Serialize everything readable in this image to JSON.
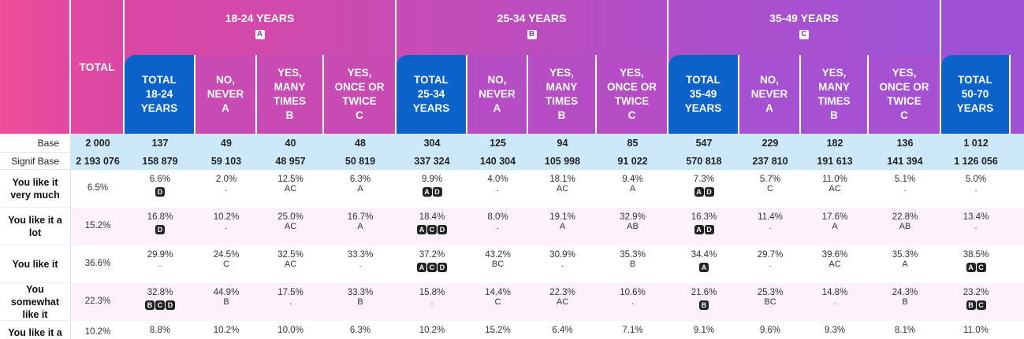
{
  "columns": {
    "total": "TOTAL",
    "groups": [
      {
        "label": "18-24 YEARS",
        "badge": "A"
      },
      {
        "label": "25-34 YEARS",
        "badge": "B"
      },
      {
        "label": "35-49 YEARS",
        "badge": "C"
      }
    ],
    "subheaders": [
      [
        "TOTAL",
        "18-24",
        "YEARS"
      ],
      [
        "NO,",
        "NEVER",
        "A"
      ],
      [
        "YES,",
        "MANY",
        "TIMES",
        "B"
      ],
      [
        "YES,",
        "ONCE OR",
        "TWICE",
        "C"
      ],
      [
        "TOTAL",
        "25-34",
        "YEARS"
      ],
      [
        "NO,",
        "NEVER",
        "A"
      ],
      [
        "YES,",
        "MANY",
        "TIMES",
        "B"
      ],
      [
        "YES,",
        "ONCE OR",
        "TWICE",
        "C"
      ],
      [
        "TOTAL",
        "35-49",
        "YEARS"
      ],
      [
        "NO,",
        "NEVER",
        "A"
      ],
      [
        "YES,",
        "MANY",
        "TIMES",
        "B"
      ],
      [
        "YES,",
        "ONCE OR",
        "TWICE",
        "C"
      ],
      [
        "TOTAL",
        "50-70",
        "YEARS"
      ]
    ]
  },
  "base": {
    "label": "Base",
    "values": [
      "2 000",
      "137",
      "49",
      "40",
      "48",
      "304",
      "125",
      "94",
      "85",
      "547",
      "229",
      "182",
      "136",
      "1 012"
    ]
  },
  "signif_base": {
    "label": "Signif Base",
    "values": [
      "2 193 076",
      "158 879",
      "59 103",
      "48 957",
      "50 819",
      "337 324",
      "140 304",
      "105 998",
      "91 022",
      "570 818",
      "237 810",
      "191 613",
      "141 394",
      "1 126 056"
    ]
  },
  "rows": [
    {
      "label": [
        "You like it",
        "very much"
      ],
      "cells": [
        {
          "pct": "6.5%"
        },
        {
          "pct": "6.6%",
          "badges": [
            "D"
          ]
        },
        {
          "pct": "2.0%",
          "sig": "."
        },
        {
          "pct": "12.5%",
          "sig": "AC"
        },
        {
          "pct": "6.3%",
          "sig": "A"
        },
        {
          "pct": "9.9%",
          "badges": [
            "A",
            "D"
          ]
        },
        {
          "pct": "4.0%",
          "sig": "."
        },
        {
          "pct": "18.1%",
          "sig": "AC"
        },
        {
          "pct": "9.4%",
          "sig": "A"
        },
        {
          "pct": "7.3%",
          "badges": [
            "A",
            "D"
          ]
        },
        {
          "pct": "5.7%",
          "sig": "C"
        },
        {
          "pct": "11.0%",
          "sig": "AC"
        },
        {
          "pct": "5.1%",
          "sig": "."
        },
        {
          "pct": "5.0%",
          "sig": "."
        }
      ]
    },
    {
      "label": [
        "You like it a",
        "lot"
      ],
      "cells": [
        {
          "pct": "15.2%"
        },
        {
          "pct": "16.8%",
          "badges": [
            "D"
          ]
        },
        {
          "pct": "10.2%",
          "sig": "."
        },
        {
          "pct": "25.0%",
          "sig": "AC"
        },
        {
          "pct": "16.7%",
          "sig": "A"
        },
        {
          "pct": "18.4%",
          "badges": [
            "A",
            "C",
            "D"
          ]
        },
        {
          "pct": "8.0%",
          "sig": "."
        },
        {
          "pct": "19.1%",
          "sig": "A"
        },
        {
          "pct": "32.9%",
          "sig": "AB"
        },
        {
          "pct": "16.3%",
          "badges": [
            "A",
            "D"
          ]
        },
        {
          "pct": "11.4%",
          "sig": "."
        },
        {
          "pct": "17.6%",
          "sig": "A"
        },
        {
          "pct": "22.8%",
          "sig": "AB"
        },
        {
          "pct": "13.4%",
          "sig": "."
        }
      ]
    },
    {
      "label": [
        "You like it"
      ],
      "cells": [
        {
          "pct": "36.6%"
        },
        {
          "pct": "29.9%",
          "sig": "."
        },
        {
          "pct": "24.5%",
          "sig": "C"
        },
        {
          "pct": "32.5%",
          "sig": "AC"
        },
        {
          "pct": "33.3%",
          "sig": "."
        },
        {
          "pct": "37.2%",
          "badges": [
            "A",
            "C",
            "D"
          ]
        },
        {
          "pct": "43.2%",
          "sig": "BC"
        },
        {
          "pct": "30.9%",
          "sig": "."
        },
        {
          "pct": "35.3%",
          "sig": "B"
        },
        {
          "pct": "34.4%",
          "badges": [
            "A"
          ]
        },
        {
          "pct": "29.7%",
          "sig": "."
        },
        {
          "pct": "39.6%",
          "sig": "AC"
        },
        {
          "pct": "35.3%",
          "sig": "A"
        },
        {
          "pct": "38.5%",
          "badges": [
            "A",
            "C"
          ]
        }
      ]
    },
    {
      "label": [
        "You",
        "somewhat",
        "like it"
      ],
      "cells": [
        {
          "pct": "22.3%"
        },
        {
          "pct": "32.8%",
          "badges": [
            "B",
            "C",
            "D"
          ]
        },
        {
          "pct": "44.9%",
          "sig": "B"
        },
        {
          "pct": "17.5%",
          "sig": "."
        },
        {
          "pct": "33.3%",
          "sig": "B"
        },
        {
          "pct": "15.8%",
          "sig": "."
        },
        {
          "pct": "14.4%",
          "sig": "C"
        },
        {
          "pct": "22.3%",
          "sig": "AC"
        },
        {
          "pct": "10.6%",
          "sig": "."
        },
        {
          "pct": "21.6%",
          "badges": [
            "B"
          ]
        },
        {
          "pct": "25.3%",
          "sig": "BC"
        },
        {
          "pct": "14.8%",
          "sig": "."
        },
        {
          "pct": "24.3%",
          "sig": "B"
        },
        {
          "pct": "23.2%",
          "badges": [
            "B",
            "C"
          ]
        }
      ]
    },
    {
      "label": [
        "You like it a"
      ],
      "cells": [
        {
          "pct": "10.2%"
        },
        {
          "pct": "8.8%"
        },
        {
          "pct": "10.2%"
        },
        {
          "pct": "10.0%"
        },
        {
          "pct": "6.3%"
        },
        {
          "pct": "10.2%"
        },
        {
          "pct": "15.2%"
        },
        {
          "pct": "6.4%"
        },
        {
          "pct": "7.1%"
        },
        {
          "pct": "9.1%"
        },
        {
          "pct": "9.6%"
        },
        {
          "pct": "9.3%"
        },
        {
          "pct": "8.1%"
        },
        {
          "pct": "11.0%"
        }
      ]
    }
  ],
  "colors": {
    "pink": "#ea4a9c",
    "magenta": "#d446a6",
    "purple_mid": "#b24fc8",
    "purple": "#9d52d6",
    "total_blue": "#0b63c9",
    "base_bg": "#cde9f9",
    "stripe": "#fdf2fb"
  }
}
